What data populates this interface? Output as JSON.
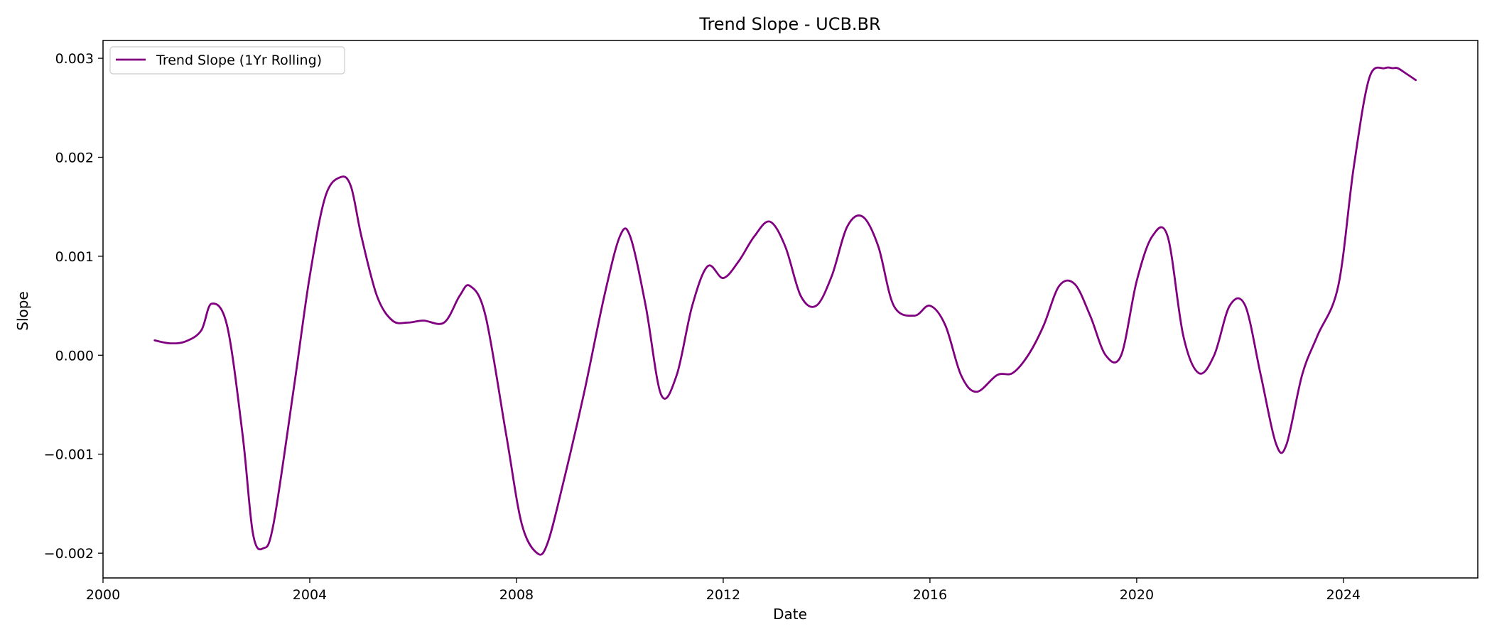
{
  "chart_data": {
    "type": "line",
    "title": "Trend Slope - UCB.BR",
    "xlabel": "Date",
    "ylabel": "Slope",
    "xlim": [
      2000.0,
      2026.6
    ],
    "ylim": [
      -0.00225,
      0.00318
    ],
    "grid": false,
    "legend_position": "top-left",
    "x_ticks": [
      2000,
      2004,
      2008,
      2012,
      2016,
      2020,
      2024
    ],
    "y_ticks": [
      -0.002,
      -0.001,
      0.0,
      0.001,
      0.002,
      0.003
    ],
    "y_tick_labels": [
      "−0.002",
      "−0.001",
      "0.000",
      "0.001",
      "0.002",
      "0.003"
    ],
    "series": [
      {
        "name": "Trend Slope (1Yr Rolling)",
        "color": "#800080",
        "x": [
          2001.0,
          2001.3,
          2001.6,
          2001.9,
          2002.1,
          2002.4,
          2002.7,
          2002.9,
          2003.1,
          2003.3,
          2003.7,
          2004.0,
          2004.3,
          2004.6,
          2004.8,
          2005.0,
          2005.3,
          2005.6,
          2005.9,
          2006.2,
          2006.6,
          2006.9,
          2007.1,
          2007.4,
          2007.8,
          2008.1,
          2008.4,
          2008.6,
          2008.9,
          2009.3,
          2009.7,
          2010.0,
          2010.2,
          2010.5,
          2010.8,
          2011.1,
          2011.4,
          2011.7,
          2012.0,
          2012.3,
          2012.6,
          2012.9,
          2013.2,
          2013.5,
          2013.8,
          2014.1,
          2014.4,
          2014.7,
          2015.0,
          2015.3,
          2015.7,
          2016.0,
          2016.3,
          2016.6,
          2016.9,
          2017.3,
          2017.6,
          2017.9,
          2018.2,
          2018.5,
          2018.8,
          2019.1,
          2019.4,
          2019.7,
          2020.0,
          2020.3,
          2020.6,
          2020.9,
          2021.2,
          2021.5,
          2021.8,
          2022.1,
          2022.4,
          2022.7,
          2022.9,
          2023.2,
          2023.5,
          2023.9,
          2024.2,
          2024.5,
          2024.8,
          2024.95,
          2025.05,
          2025.2,
          2025.4
        ],
        "values": [
          0.00015,
          0.00012,
          0.00014,
          0.00025,
          0.00052,
          0.0003,
          -0.0008,
          -0.0018,
          -0.00195,
          -0.0017,
          -0.0003,
          0.0008,
          0.0016,
          0.0018,
          0.0017,
          0.0012,
          0.0006,
          0.00035,
          0.00033,
          0.00035,
          0.00033,
          0.0006,
          0.0007,
          0.0004,
          -0.0008,
          -0.0017,
          -0.002,
          -0.0019,
          -0.0013,
          -0.0004,
          0.0006,
          0.0012,
          0.0012,
          0.0005,
          -0.0004,
          -0.0002,
          0.0005,
          0.0009,
          0.00078,
          0.00095,
          0.0012,
          0.00135,
          0.0011,
          0.0006,
          0.0005,
          0.0008,
          0.0013,
          0.0014,
          0.0011,
          0.0005,
          0.0004,
          0.0005,
          0.0003,
          -0.0002,
          -0.00037,
          -0.0002,
          -0.00018,
          0.0,
          0.0003,
          0.0007,
          0.00072,
          0.0004,
          0.0,
          0.0,
          0.00075,
          0.0012,
          0.0012,
          0.0002,
          -0.00018,
          0.0,
          0.0005,
          0.0005,
          -0.0002,
          -0.0009,
          -0.0009,
          -0.0002,
          0.0002,
          0.0007,
          0.0019,
          0.0028,
          0.0029,
          0.0029,
          0.0029,
          0.00285,
          0.00278
        ]
      }
    ]
  }
}
